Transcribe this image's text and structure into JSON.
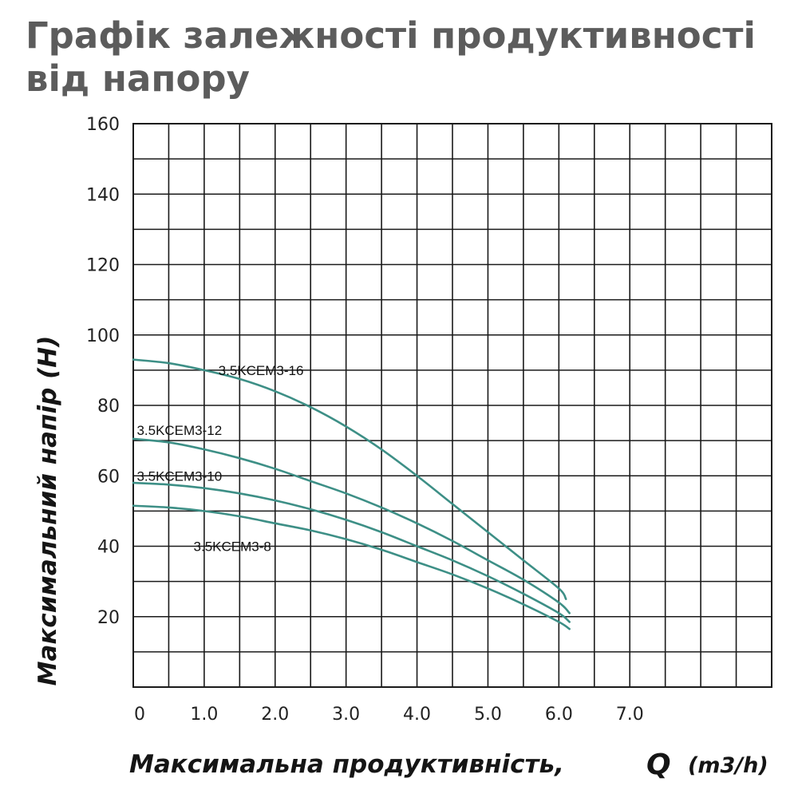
{
  "chart_data": {
    "type": "line",
    "title": "Графік залежності продуктивності від напору",
    "xlabel": "Максимальна продуктивність,",
    "xlabel_symbol": "Q",
    "xlabel_unit": "(m3/h)",
    "ylabel": "Максимальний напір (H)",
    "xlim": [
      0,
      9
    ],
    "ylim": [
      0,
      160
    ],
    "x_ticks": [
      {
        "value": 0,
        "label": "0"
      },
      {
        "value": 1,
        "label": "1.0"
      },
      {
        "value": 2,
        "label": "2.0"
      },
      {
        "value": 3,
        "label": "3.0"
      },
      {
        "value": 4,
        "label": "4.0"
      },
      {
        "value": 5,
        "label": "5.0"
      },
      {
        "value": 6,
        "label": "6.0"
      },
      {
        "value": 7,
        "label": "7.0"
      }
    ],
    "y_ticks": [
      20,
      40,
      60,
      80,
      100,
      120,
      140,
      160
    ],
    "grid": true,
    "grid_x_step": 0.5,
    "grid_y_step": 10,
    "line_color": "#3d8f86",
    "series": [
      {
        "name": "3.5KCEM3-16",
        "label_at": [
          1.2,
          90
        ],
        "x": [
          0,
          0.5,
          1,
          1.5,
          2,
          2.5,
          3,
          3.5,
          4,
          4.5,
          5,
          5.5,
          6,
          6.1
        ],
        "y": [
          93,
          92,
          90,
          87.5,
          84,
          79.5,
          74,
          67.5,
          60,
          52,
          44,
          36,
          28,
          25
        ]
      },
      {
        "name": "3.5KCEM3-12",
        "label_at": [
          0.05,
          73
        ],
        "x": [
          0,
          0.5,
          1,
          1.5,
          2,
          2.5,
          3,
          3.5,
          4,
          4.5,
          5,
          5.5,
          6,
          6.15
        ],
        "y": [
          70.5,
          69.5,
          67.5,
          65,
          62,
          58.5,
          55,
          51,
          46.5,
          41.5,
          36,
          30.5,
          24,
          21
        ]
      },
      {
        "name": "3.5KCEM3-10",
        "label_at": [
          0.05,
          60
        ],
        "x": [
          0,
          0.5,
          1,
          1.5,
          2,
          2.5,
          3,
          3.5,
          4,
          4.5,
          5,
          5.5,
          6,
          6.15
        ],
        "y": [
          58,
          57.5,
          56.5,
          55,
          53,
          50.5,
          47.5,
          44,
          40,
          36,
          31.5,
          26.5,
          21,
          18.5
        ]
      },
      {
        "name": "3.5KCEM3-8",
        "label_at": [
          0.85,
          40
        ],
        "x": [
          0,
          0.5,
          1,
          1.5,
          2,
          2.5,
          3,
          3.5,
          4,
          4.5,
          5,
          5.5,
          6,
          6.15
        ],
        "y": [
          51.5,
          51,
          50,
          48.5,
          46.5,
          44.5,
          42,
          39,
          35.5,
          32,
          28,
          23.5,
          18.5,
          16.5
        ]
      }
    ]
  }
}
